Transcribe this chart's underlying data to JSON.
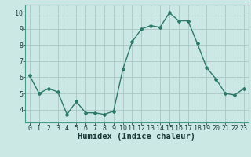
{
  "x": [
    0,
    1,
    2,
    3,
    4,
    5,
    6,
    7,
    8,
    9,
    10,
    11,
    12,
    13,
    14,
    15,
    16,
    17,
    18,
    19,
    20,
    21,
    22,
    23
  ],
  "y": [
    6.1,
    5.0,
    5.3,
    5.1,
    3.7,
    4.5,
    3.8,
    3.8,
    3.7,
    3.9,
    6.5,
    8.2,
    9.0,
    9.2,
    9.1,
    10.0,
    9.5,
    9.5,
    8.1,
    6.6,
    5.9,
    5.0,
    4.9,
    5.3
  ],
  "line_color": "#2d7a6a",
  "bg_color": "#cce8e4",
  "major_grid_color": "#b0ccc8",
  "minor_grid_color": "#e8b8b8",
  "xlabel": "Humidex (Indice chaleur)",
  "ylim": [
    3.2,
    10.5
  ],
  "xlim": [
    -0.5,
    23.5
  ],
  "yticks": [
    4,
    5,
    6,
    7,
    8,
    9,
    10
  ],
  "xticks": [
    0,
    1,
    2,
    3,
    4,
    5,
    6,
    7,
    8,
    9,
    10,
    11,
    12,
    13,
    14,
    15,
    16,
    17,
    18,
    19,
    20,
    21,
    22,
    23
  ],
  "tick_fontsize": 6,
  "xlabel_fontsize": 7.5,
  "marker": "D",
  "marker_size": 2.0,
  "line_width": 1.0
}
